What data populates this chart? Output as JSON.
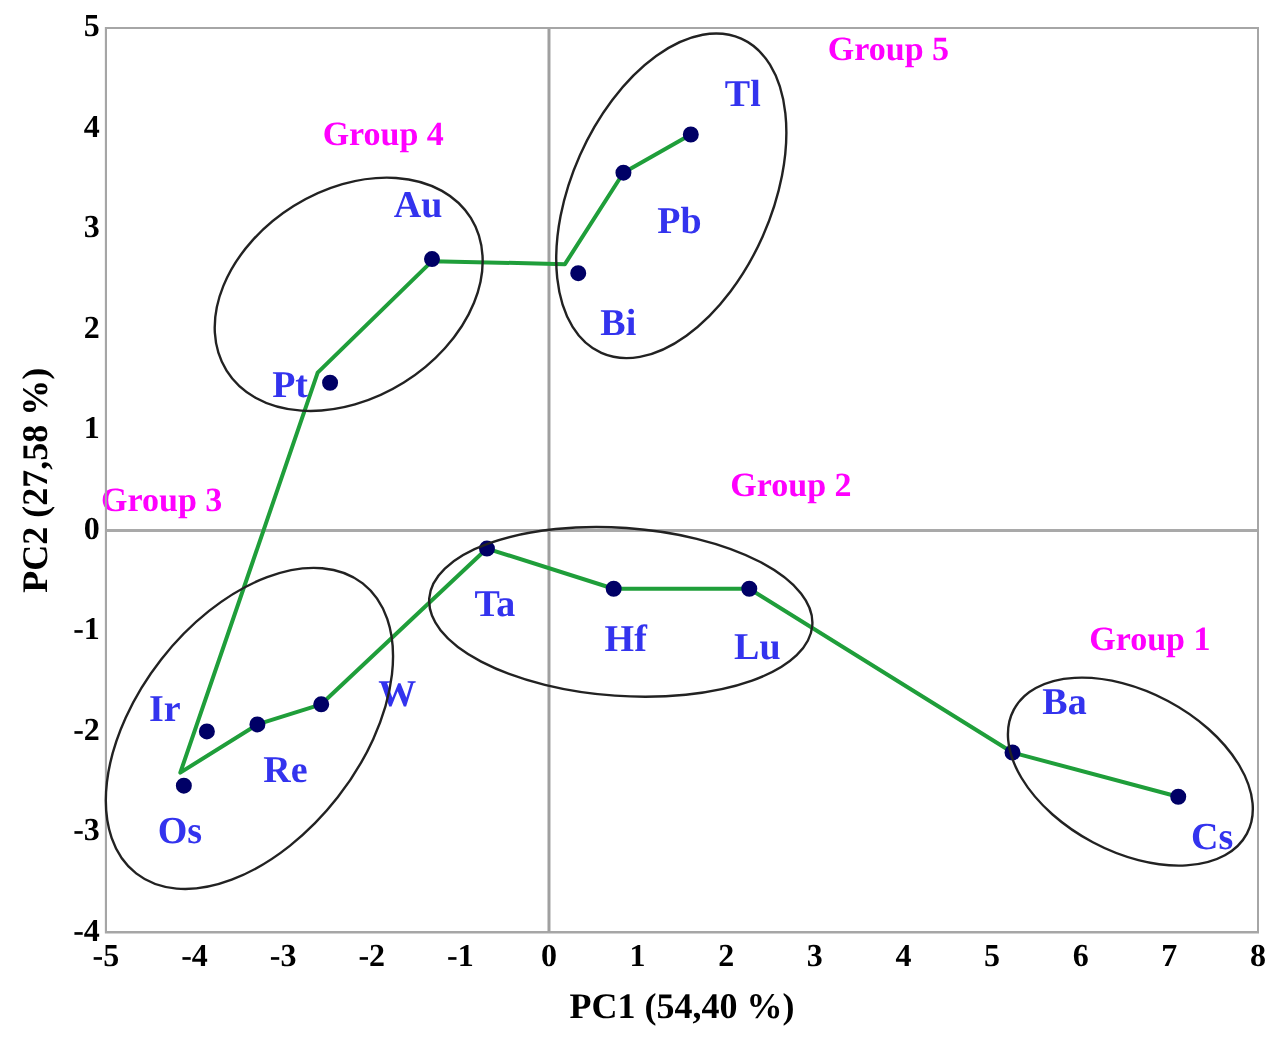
{
  "chart_data": {
    "type": "scatter",
    "xlabel": "PC1 (54,40 %)",
    "ylabel": "PC2 (27,58 %)",
    "xlim": [
      -5,
      8
    ],
    "xticks": [
      -5,
      -4,
      -3,
      -2,
      -1,
      0,
      1,
      2,
      3,
      4,
      5,
      6,
      7,
      8
    ],
    "ylim": [
      -4,
      5
    ],
    "yticks": [
      -4,
      -3,
      -2,
      -1,
      0,
      1,
      2,
      3,
      4,
      5
    ],
    "grid": false,
    "legend": false,
    "ref_lines": [
      {
        "axis": "x",
        "value": 0,
        "color": "#a0a0a0"
      },
      {
        "axis": "y",
        "value": 0,
        "color": "#a9a9a9"
      }
    ],
    "series": [
      {
        "type": "line",
        "color": "#1f9e3a",
        "marker": "none",
        "line_style": "solid",
        "x": [
          7.1,
          5.23,
          2.26,
          0.73,
          -0.7,
          -2.57,
          -3.29,
          -4.16,
          -2.61,
          -1.32,
          0.18,
          0.84,
          1.6
        ],
        "values": [
          -2.65,
          -2.21,
          -0.58,
          -0.58,
          -0.18,
          -1.73,
          -1.93,
          -2.41,
          1.57,
          2.68,
          2.65,
          3.56,
          3.94
        ]
      },
      {
        "type": "scatter",
        "color": "#000066",
        "marker": "circle",
        "x": [
          7.1,
          5.23,
          2.26,
          0.73,
          -0.7,
          -2.57,
          -3.29,
          -3.86,
          -4.12,
          -2.47,
          -1.32,
          0.33,
          0.84,
          1.6
        ],
        "values": [
          -2.65,
          -2.21,
          -0.58,
          -0.58,
          -0.18,
          -1.73,
          -1.93,
          -2.0,
          -2.54,
          1.47,
          2.7,
          2.56,
          3.56,
          3.94
        ],
        "value_labels": [
          "Cs",
          "Ba",
          "Lu",
          "Hf",
          "Ta",
          "W",
          "Re",
          "Ir",
          "Os",
          "Pt",
          "Au",
          "Bi",
          "Pb",
          "Tl"
        ]
      }
    ],
    "annotations": [
      "Group 1",
      "Group 2",
      "Group 3",
      "Group 4",
      "Group 5"
    ]
  }
}
